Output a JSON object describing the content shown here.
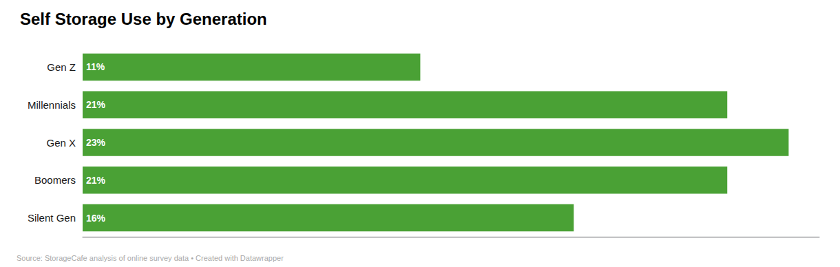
{
  "chart_data": {
    "type": "bar",
    "orientation": "horizontal",
    "title": "Self Storage Use by Generation",
    "annotations": [
      "Source: StorageCafe analysis of online survey data • Created with Datawrapper"
    ],
    "categories": [
      "Gen Z",
      "Millennials",
      "Gen X",
      "Boomers",
      "Silent Gen"
    ],
    "values": [
      11,
      21,
      23,
      21,
      16
    ],
    "value_labels": [
      "11%",
      "21%",
      "23%",
      "21%",
      "16%"
    ],
    "data_labels": true,
    "color": "#4aA135",
    "xlim": [
      0,
      24
    ],
    "grid": false,
    "tick_labels": "y"
  }
}
